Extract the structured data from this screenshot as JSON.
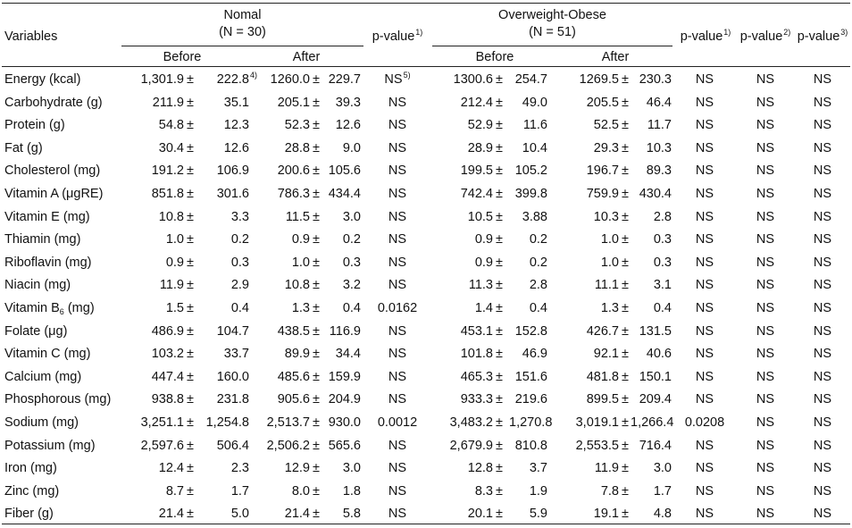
{
  "headers": {
    "variables": "Variables",
    "normal_group": "Nomal",
    "normal_n": "(N = 30)",
    "obese_group": "Overweight-Obese",
    "obese_n": "(N = 51)",
    "before": "Before",
    "after": "After",
    "pvalue": "p-value",
    "pvalue_sup1": "1)",
    "pvalue_sup2": "2)",
    "pvalue_sup3": "3)"
  },
  "footnote_marks": {
    "sd_mark": "4)",
    "ns_mark": "5)"
  },
  "rows": [
    {
      "variable": "Energy (kcal)",
      "n_before_mean": "1,301.9",
      "n_before_sd": "222.8",
      "n_after_mean": "1260.0",
      "n_after_sd": "229.7",
      "n_p": "NS",
      "o_before_mean": "1300.6",
      "o_before_sd": "254.7",
      "o_after_mean": "1269.5",
      "o_after_sd": "230.3",
      "o_p": "NS",
      "p2": "NS",
      "p3": "NS"
    },
    {
      "variable": "Carbohydrate (g)",
      "n_before_mean": "211.9",
      "n_before_sd": "35.1",
      "n_after_mean": "205.1",
      "n_after_sd": "39.3",
      "n_p": "NS",
      "o_before_mean": "212.4",
      "o_before_sd": "49.0",
      "o_after_mean": "205.5",
      "o_after_sd": "46.4",
      "o_p": "NS",
      "p2": "NS",
      "p3": "NS"
    },
    {
      "variable": "Protein (g)",
      "n_before_mean": "54.8",
      "n_before_sd": "12.3",
      "n_after_mean": "52.3",
      "n_after_sd": "12.6",
      "n_p": "NS",
      "o_before_mean": "52.9",
      "o_before_sd": "11.6",
      "o_after_mean": "52.5",
      "o_after_sd": "11.7",
      "o_p": "NS",
      "p2": "NS",
      "p3": "NS"
    },
    {
      "variable": "Fat (g)",
      "n_before_mean": "30.4",
      "n_before_sd": "12.6",
      "n_after_mean": "28.8",
      "n_after_sd": "9.0",
      "n_p": "NS",
      "o_before_mean": "28.9",
      "o_before_sd": "10.4",
      "o_after_mean": "29.3",
      "o_after_sd": "10.3",
      "o_p": "NS",
      "p2": "NS",
      "p3": "NS"
    },
    {
      "variable": "Cholesterol (mg)",
      "n_before_mean": "191.2",
      "n_before_sd": "106.9",
      "n_after_mean": "200.6",
      "n_after_sd": "105.6",
      "n_p": "NS",
      "o_before_mean": "199.5",
      "o_before_sd": "105.2",
      "o_after_mean": "196.7",
      "o_after_sd": "89.3",
      "o_p": "NS",
      "p2": "NS",
      "p3": "NS"
    },
    {
      "variable": "Vitamin A (μgRE)",
      "n_before_mean": "851.8",
      "n_before_sd": "301.6",
      "n_after_mean": "786.3",
      "n_after_sd": "434.4",
      "n_p": "NS",
      "o_before_mean": "742.4",
      "o_before_sd": "399.8",
      "o_after_mean": "759.9",
      "o_after_sd": "430.4",
      "o_p": "NS",
      "p2": "NS",
      "p3": "NS"
    },
    {
      "variable": "Vitamin E (mg)",
      "n_before_mean": "10.8",
      "n_before_sd": "3.3",
      "n_after_mean": "11.5",
      "n_after_sd": "3.0",
      "n_p": "NS",
      "o_before_mean": "10.5",
      "o_before_sd": "3.88",
      "o_after_mean": "10.3",
      "o_after_sd": "2.8",
      "o_p": "NS",
      "p2": "NS",
      "p3": "NS"
    },
    {
      "variable": "Thiamin (mg)",
      "n_before_mean": "1.0",
      "n_before_sd": "0.2",
      "n_after_mean": "0.9",
      "n_after_sd": "0.2",
      "n_p": "NS",
      "o_before_mean": "0.9",
      "o_before_sd": "0.2",
      "o_after_mean": "1.0",
      "o_after_sd": "0.3",
      "o_p": "NS",
      "p2": "NS",
      "p3": "NS"
    },
    {
      "variable": "Riboflavin (mg)",
      "n_before_mean": "0.9",
      "n_before_sd": "0.3",
      "n_after_mean": "1.0",
      "n_after_sd": "0.3",
      "n_p": "NS",
      "o_before_mean": "0.9",
      "o_before_sd": "0.2",
      "o_after_mean": "1.0",
      "o_after_sd": "0.3",
      "o_p": "NS",
      "p2": "NS",
      "p3": "NS"
    },
    {
      "variable": "Niacin (mg)",
      "n_before_mean": "11.9",
      "n_before_sd": "2.9",
      "n_after_mean": "10.8",
      "n_after_sd": "3.2",
      "n_p": "NS",
      "o_before_mean": "11.3",
      "o_before_sd": "2.8",
      "o_after_mean": "11.1",
      "o_after_sd": "3.1",
      "o_p": "NS",
      "p2": "NS",
      "p3": "NS"
    },
    {
      "variable": "Vitamin B",
      "variable_sub": "6",
      "variable_suffix": " (mg)",
      "n_before_mean": "1.5",
      "n_before_sd": "0.4",
      "n_after_mean": "1.3",
      "n_after_sd": "0.4",
      "n_p": "0.0162",
      "o_before_mean": "1.4",
      "o_before_sd": "0.4",
      "o_after_mean": "1.3",
      "o_after_sd": "0.4",
      "o_p": "NS",
      "p2": "NS",
      "p3": "NS"
    },
    {
      "variable": "Folate (μg)",
      "n_before_mean": "486.9",
      "n_before_sd": "104.7",
      "n_after_mean": "438.5",
      "n_after_sd": "116.9",
      "n_p": "NS",
      "o_before_mean": "453.1",
      "o_before_sd": "152.8",
      "o_after_mean": "426.7",
      "o_after_sd": "131.5",
      "o_p": "NS",
      "p2": "NS",
      "p3": "NS"
    },
    {
      "variable": "Vitamin C (mg)",
      "n_before_mean": "103.2",
      "n_before_sd": "33.7",
      "n_after_mean": "89.9",
      "n_after_sd": "34.4",
      "n_p": "NS",
      "o_before_mean": "101.8",
      "o_before_sd": "46.9",
      "o_after_mean": "92.1",
      "o_after_sd": "40.6",
      "o_p": "NS",
      "p2": "NS",
      "p3": "NS"
    },
    {
      "variable": "Calcium (mg)",
      "n_before_mean": "447.4",
      "n_before_sd": "160.0",
      "n_after_mean": "485.6",
      "n_after_sd": "159.9",
      "n_p": "NS",
      "o_before_mean": "465.3",
      "o_before_sd": "151.6",
      "o_after_mean": "481.8",
      "o_after_sd": "150.1",
      "o_p": "NS",
      "p2": "NS",
      "p3": "NS"
    },
    {
      "variable": "Phosphorous (mg)",
      "n_before_mean": "938.8",
      "n_before_sd": "231.8",
      "n_after_mean": "905.6",
      "n_after_sd": "204.9",
      "n_p": "NS",
      "o_before_mean": "933.3",
      "o_before_sd": "219.6",
      "o_after_mean": "899.5",
      "o_after_sd": "209.4",
      "o_p": "NS",
      "p2": "NS",
      "p3": "NS"
    },
    {
      "variable": "Sodium (mg)",
      "n_before_mean": "3,251.1",
      "n_before_sd": "1,254.8",
      "n_after_mean": "2,513.7",
      "n_after_sd": "930.0",
      "n_p": "0.0012",
      "o_before_mean": "3,483.2",
      "o_before_sd": "1,270.8",
      "o_after_mean": "3,019.1",
      "o_after_sd": "1,266.4",
      "o_p": "0.0208",
      "p2": "NS",
      "p3": "NS"
    },
    {
      "variable": "Potassium (mg)",
      "n_before_mean": "2,597.6",
      "n_before_sd": "506.4",
      "n_after_mean": "2,506.2",
      "n_after_sd": "565.6",
      "n_p": "NS",
      "o_before_mean": "2,679.9",
      "o_before_sd": "810.8",
      "o_after_mean": "2,553.5",
      "o_after_sd": "716.4",
      "o_p": "NS",
      "p2": "NS",
      "p3": "NS"
    },
    {
      "variable": "Iron (mg)",
      "n_before_mean": "12.4",
      "n_before_sd": "2.3",
      "n_after_mean": "12.9",
      "n_after_sd": "3.0",
      "n_p": "NS",
      "o_before_mean": "12.8",
      "o_before_sd": "3.7",
      "o_after_mean": "11.9",
      "o_after_sd": "3.0",
      "o_p": "NS",
      "p2": "NS",
      "p3": "NS"
    },
    {
      "variable": "Zinc (mg)",
      "n_before_mean": "8.7",
      "n_before_sd": "1.7",
      "n_after_mean": "8.0",
      "n_after_sd": "1.8",
      "n_p": "NS",
      "o_before_mean": "8.3",
      "o_before_sd": "1.9",
      "o_after_mean": "7.8",
      "o_after_sd": "1.7",
      "o_p": "NS",
      "p2": "NS",
      "p3": "NS"
    },
    {
      "variable": "Fiber (g)",
      "n_before_mean": "21.4",
      "n_before_sd": "5.0",
      "n_after_mean": "21.4",
      "n_after_sd": "5.8",
      "n_p": "NS",
      "o_before_mean": "20.1",
      "o_before_sd": "5.9",
      "o_after_mean": "19.1",
      "o_after_sd": "4.8",
      "o_p": "NS",
      "p2": "NS",
      "p3": "NS"
    }
  ]
}
